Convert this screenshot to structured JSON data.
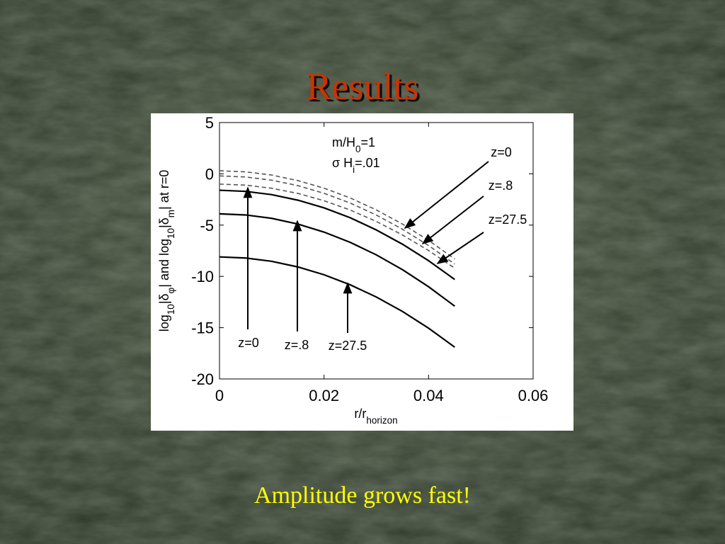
{
  "title": "Results",
  "caption": "Amplitude grows fast!",
  "chart_data": {
    "type": "line",
    "xlabel": [
      "r/r",
      "horizon"
    ],
    "ylabel": [
      "log",
      "10",
      "|δ",
      "φ",
      "| and log",
      "10",
      "|δ",
      "m",
      "| at r=0"
    ],
    "params": [
      [
        "m/H",
        "0",
        "=1"
      ],
      [
        "σ H",
        "i",
        "=.01"
      ]
    ],
    "x": [
      0,
      0.005,
      0.01,
      0.015,
      0.02,
      0.025,
      0.03,
      0.035,
      0.04,
      0.045
    ],
    "series": [
      {
        "color": "#000000",
        "style": "solid",
        "values": [
          -1.6,
          -1.71,
          -2.03,
          -2.57,
          -3.32,
          -4.28,
          -5.47,
          -6.86,
          -8.47,
          -10.3
        ]
      },
      {
        "color": "#000000",
        "style": "solid",
        "values": [
          -3.9,
          -4.01,
          -4.34,
          -4.9,
          -5.68,
          -6.68,
          -7.9,
          -9.34,
          -11.01,
          -12.9
        ]
      },
      {
        "color": "#000000",
        "style": "solid",
        "values": [
          -8.1,
          -8.21,
          -8.53,
          -9.08,
          -9.84,
          -10.82,
          -12.01,
          -13.42,
          -15.05,
          -16.9
        ]
      },
      {
        "color": "#555555",
        "style": "dashed",
        "values": [
          0.3,
          0.19,
          -0.12,
          -0.66,
          -1.4,
          -2.35,
          -3.52,
          -4.9,
          -6.49,
          -8.3
        ]
      },
      {
        "color": "#555555",
        "style": "dashed",
        "values": [
          -0.2,
          -0.31,
          -0.62,
          -1.15,
          -1.9,
          -2.85,
          -4.02,
          -5.4,
          -6.99,
          -8.8
        ]
      },
      {
        "color": "#555555",
        "style": "dashed",
        "values": [
          -1.0,
          -1.1,
          -1.41,
          -1.91,
          -2.62,
          -3.53,
          -4.64,
          -5.96,
          -7.48,
          -9.2
        ]
      }
    ],
    "xlim": [
      0,
      0.06
    ],
    "ylim": [
      -20,
      5
    ],
    "xticks": [
      0,
      0.02,
      0.04,
      0.06
    ],
    "yticks": [
      5,
      0,
      -5,
      -10,
      -15,
      -20
    ],
    "annotations": [
      "z=0",
      "z=.8",
      "z=27.5",
      "z=0",
      "z=.8",
      "z=27.5"
    ]
  }
}
